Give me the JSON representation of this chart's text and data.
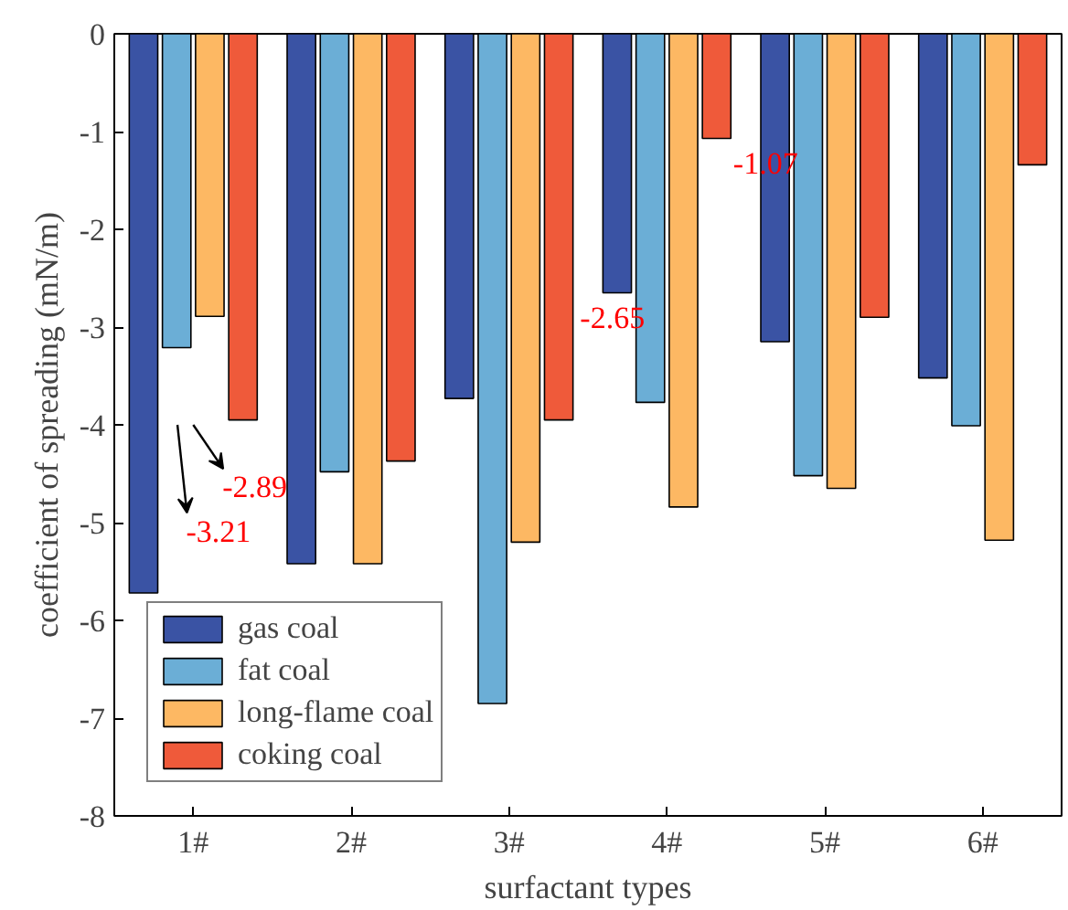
{
  "chart_data": {
    "type": "bar",
    "xlabel": "surfactant types",
    "ylabel": "coefficient of spreading (mN/m)",
    "categories": [
      "1#",
      "2#",
      "3#",
      "4#",
      "5#",
      "6#"
    ],
    "series": [
      {
        "name": "gas coal",
        "color": "#3a53a4",
        "values": [
          -5.72,
          -5.42,
          -3.73,
          -2.65,
          -3.15,
          -3.52
        ]
      },
      {
        "name": "fat coal",
        "color": "#6baed6",
        "values": [
          -3.21,
          -4.48,
          -6.85,
          -3.77,
          -4.52,
          -4.01
        ]
      },
      {
        "name": "long-flame coal",
        "color": "#fdb863",
        "values": [
          -2.89,
          -5.42,
          -5.2,
          -4.84,
          -4.65,
          -5.18
        ]
      },
      {
        "name": "coking coal",
        "color": "#ef5a3a",
        "values": [
          -3.95,
          -4.37,
          -3.95,
          -1.07,
          -2.9,
          -1.34
        ]
      }
    ],
    "ylim": [
      -8,
      0
    ],
    "yticks": [
      0,
      -1,
      -2,
      -3,
      -4,
      -5,
      -6,
      -7,
      -8
    ],
    "annotations": [
      "-3.21",
      "-2.89",
      {
        "text": "-2.65",
        "x": "4#",
        "y": -2.65
      },
      {
        "text": "-1.07",
        "x": "4#",
        "y": -1.07
      }
    ],
    "grid": false,
    "legend": "bottom left"
  }
}
